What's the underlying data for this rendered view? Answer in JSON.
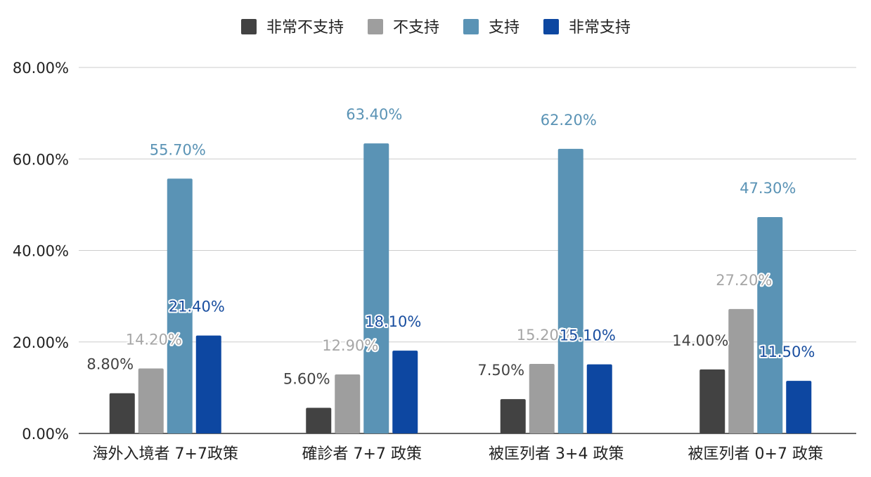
{
  "chart_data": {
    "type": "bar",
    "title": "",
    "xlabel": "",
    "ylabel": "",
    "ylim": [
      0,
      80
    ],
    "yticks": [
      0,
      20,
      40,
      60,
      80
    ],
    "ytick_labels": [
      "0.00%",
      "20.00%",
      "40.00%",
      "60.00%",
      "80.00%"
    ],
    "grid": true,
    "legend_position": "top-center",
    "categories": [
      "海外入境者 7+7政策",
      "確診者 7+7 政策",
      "被匡列者 3+4 政策",
      "被匡列者 0+7 政策"
    ],
    "series": [
      {
        "name": "非常不支持",
        "color": "#424242",
        "label_color": "#424242",
        "values": [
          8.8,
          5.6,
          7.5,
          14.0
        ],
        "labels": [
          "8.80%",
          "5.60%",
          "7.50%",
          "14.00%"
        ]
      },
      {
        "name": "不支持",
        "color": "#9e9e9e",
        "label_color": "#a6a6a6",
        "values": [
          14.2,
          12.9,
          15.2,
          27.2
        ],
        "labels": [
          "14.20%",
          "12.90%",
          "15.20%",
          "27.20%"
        ]
      },
      {
        "name": "支持",
        "color": "#5a93b5",
        "label_color": "#5a93b5",
        "values": [
          55.7,
          63.4,
          62.2,
          47.3
        ],
        "labels": [
          "55.70%",
          "63.40%",
          "62.20%",
          "47.30%"
        ]
      },
      {
        "name": "非常支持",
        "color": "#0d47a1",
        "label_color": "#1a4fa0",
        "values": [
          21.4,
          18.1,
          15.1,
          11.5
        ],
        "labels": [
          "21.40%",
          "18.10%",
          "15.10%",
          "11.50%"
        ]
      }
    ]
  }
}
